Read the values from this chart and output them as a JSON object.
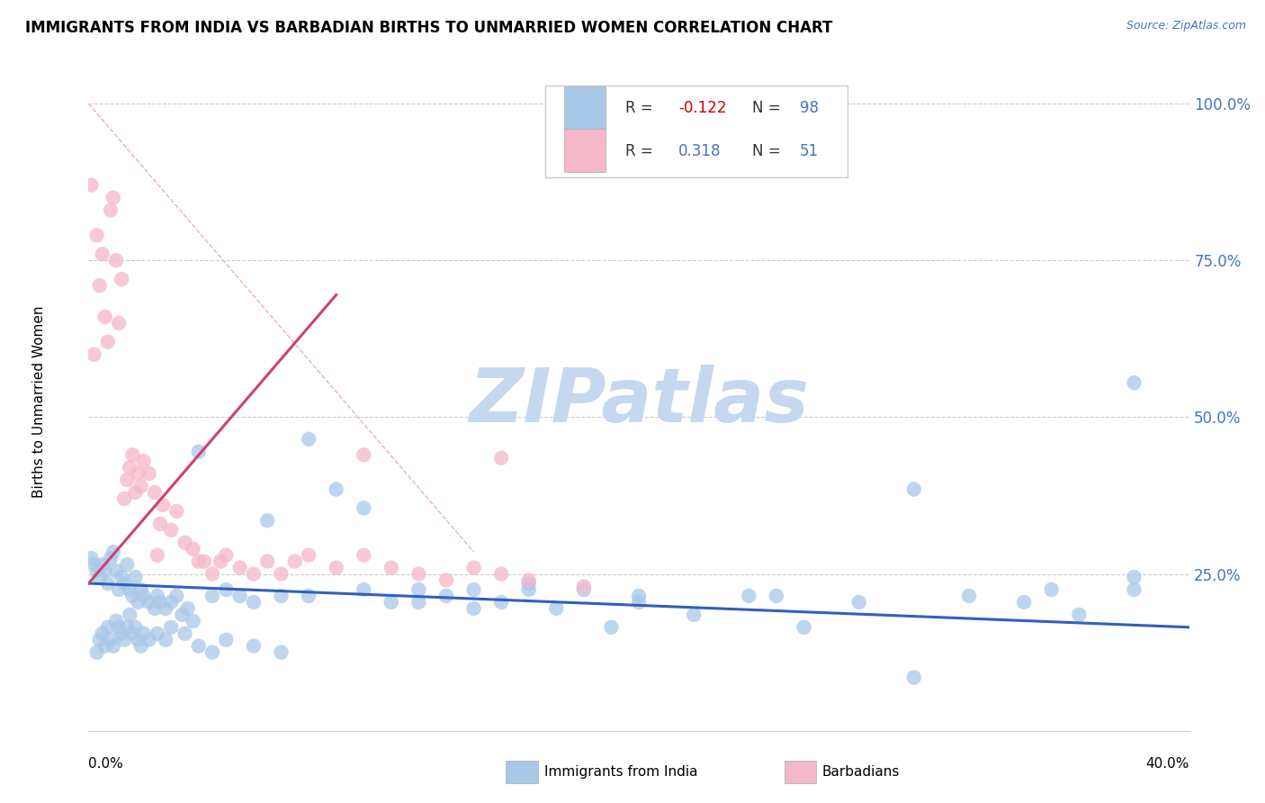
{
  "title": "IMMIGRANTS FROM INDIA VS BARBADIAN BIRTHS TO UNMARRIED WOMEN CORRELATION CHART",
  "source": "Source: ZipAtlas.com",
  "ylabel": "Births to Unmarried Women",
  "xlim": [
    0.0,
    0.4
  ],
  "ylim": [
    0.0,
    1.05
  ],
  "color_blue": "#a8c8e8",
  "color_pink": "#f4b8c8",
  "color_blue_line": "#3060c0",
  "color_pink_line": "#d04070",
  "color_diag": "#d0a0a0",
  "watermark_color": "#c5d8ef",
  "grid_color": "#cccccc",
  "ytick_color": "#4472c4",
  "legend_r1_val": "-0.122",
  "legend_n1_val": "98",
  "legend_r2_val": "0.318",
  "legend_n2_val": "51",
  "india_x": [
    0.001,
    0.002,
    0.003,
    0.004,
    0.005,
    0.006,
    0.007,
    0.008,
    0.009,
    0.01,
    0.011,
    0.012,
    0.013,
    0.014,
    0.015,
    0.016,
    0.017,
    0.018,
    0.019,
    0.02,
    0.022,
    0.024,
    0.025,
    0.026,
    0.028,
    0.03,
    0.032,
    0.034,
    0.036,
    0.038,
    0.04,
    0.045,
    0.05,
    0.055,
    0.06,
    0.065,
    0.07,
    0.08,
    0.09,
    0.1,
    0.11,
    0.12,
    0.13,
    0.14,
    0.15,
    0.16,
    0.17,
    0.18,
    0.19,
    0.2,
    0.22,
    0.24,
    0.26,
    0.28,
    0.3,
    0.32,
    0.34,
    0.36,
    0.38,
    0.003,
    0.004,
    0.005,
    0.006,
    0.007,
    0.008,
    0.009,
    0.01,
    0.011,
    0.012,
    0.013,
    0.014,
    0.015,
    0.016,
    0.017,
    0.018,
    0.019,
    0.02,
    0.022,
    0.025,
    0.028,
    0.03,
    0.035,
    0.04,
    0.045,
    0.05,
    0.06,
    0.07,
    0.08,
    0.1,
    0.12,
    0.14,
    0.16,
    0.2,
    0.25,
    0.3,
    0.35,
    0.38,
    0.38
  ],
  "india_y": [
    0.275,
    0.265,
    0.255,
    0.245,
    0.265,
    0.255,
    0.235,
    0.275,
    0.285,
    0.255,
    0.225,
    0.245,
    0.235,
    0.265,
    0.225,
    0.215,
    0.245,
    0.205,
    0.225,
    0.215,
    0.205,
    0.195,
    0.215,
    0.205,
    0.195,
    0.205,
    0.215,
    0.185,
    0.195,
    0.175,
    0.445,
    0.215,
    0.225,
    0.215,
    0.205,
    0.335,
    0.215,
    0.465,
    0.385,
    0.225,
    0.205,
    0.205,
    0.215,
    0.225,
    0.205,
    0.225,
    0.195,
    0.225,
    0.165,
    0.205,
    0.185,
    0.215,
    0.165,
    0.205,
    0.385,
    0.215,
    0.205,
    0.185,
    0.225,
    0.125,
    0.145,
    0.155,
    0.135,
    0.165,
    0.145,
    0.135,
    0.175,
    0.165,
    0.155,
    0.145,
    0.165,
    0.185,
    0.155,
    0.165,
    0.145,
    0.135,
    0.155,
    0.145,
    0.155,
    0.145,
    0.165,
    0.155,
    0.135,
    0.125,
    0.145,
    0.135,
    0.125,
    0.215,
    0.355,
    0.225,
    0.195,
    0.235,
    0.215,
    0.215,
    0.085,
    0.225,
    0.555,
    0.245
  ],
  "barb_x": [
    0.001,
    0.002,
    0.003,
    0.004,
    0.005,
    0.006,
    0.007,
    0.008,
    0.009,
    0.01,
    0.011,
    0.012,
    0.013,
    0.014,
    0.015,
    0.016,
    0.017,
    0.018,
    0.019,
    0.02,
    0.022,
    0.024,
    0.025,
    0.026,
    0.027,
    0.03,
    0.032,
    0.035,
    0.038,
    0.04,
    0.042,
    0.045,
    0.048,
    0.05,
    0.055,
    0.06,
    0.065,
    0.07,
    0.075,
    0.08,
    0.09,
    0.1,
    0.11,
    0.12,
    0.13,
    0.14,
    0.15,
    0.16,
    0.18,
    0.1,
    0.15
  ],
  "barb_y": [
    0.87,
    0.6,
    0.79,
    0.71,
    0.76,
    0.66,
    0.62,
    0.83,
    0.85,
    0.75,
    0.65,
    0.72,
    0.37,
    0.4,
    0.42,
    0.44,
    0.38,
    0.41,
    0.39,
    0.43,
    0.41,
    0.38,
    0.28,
    0.33,
    0.36,
    0.32,
    0.35,
    0.3,
    0.29,
    0.27,
    0.27,
    0.25,
    0.27,
    0.28,
    0.26,
    0.25,
    0.27,
    0.25,
    0.27,
    0.28,
    0.26,
    0.28,
    0.26,
    0.25,
    0.24,
    0.26,
    0.25,
    0.24,
    0.23,
    0.44,
    0.435
  ],
  "blue_line_x": [
    0.0,
    0.4
  ],
  "blue_line_y": [
    0.235,
    0.165
  ],
  "pink_line_x": [
    0.0,
    0.09
  ],
  "pink_line_y": [
    0.235,
    0.695
  ],
  "diag_line_x": [
    0.0,
    0.14
  ],
  "diag_line_y": [
    1.0,
    0.285
  ]
}
